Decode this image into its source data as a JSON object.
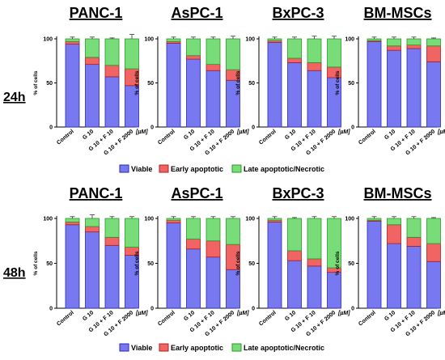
{
  "colors": {
    "viable": "#7878f0",
    "early": "#f06464",
    "late": "#78dc78",
    "viable_stroke": "#2a2ab0",
    "early_stroke": "#b02020",
    "late_stroke": "#2a9a2a"
  },
  "legend": [
    "Viable",
    "Early apoptotic",
    "Late apoptotic/Necrotic"
  ],
  "unit_label": "[µM]",
  "chart_data": [
    {
      "type": "bar",
      "stacked": true,
      "row": "24h",
      "title": "PANC-1",
      "ylabel": "% of cells",
      "ylim": [
        0,
        100
      ],
      "yticks": [
        0,
        50,
        100
      ],
      "categories": [
        "Control",
        "G 10",
        "G 10 + F 10",
        "G 10 + F 2000"
      ],
      "series": [
        {
          "name": "Viable",
          "values": [
            94,
            71,
            57,
            47
          ]
        },
        {
          "name": "Early apoptotic",
          "values": [
            3,
            8,
            13,
            19
          ]
        },
        {
          "name": "Late apoptotic/Necrotic",
          "values": [
            3,
            21,
            30,
            34
          ]
        }
      ],
      "errors": [
        [
          1,
          2,
          3,
          2
        ],
        [
          1,
          1,
          2,
          5
        ],
        [
          2,
          2,
          1,
          5
        ]
      ]
    },
    {
      "type": "bar",
      "stacked": true,
      "row": "24h",
      "title": "AsPC-1",
      "ylabel": "% of cells",
      "ylim": [
        0,
        100
      ],
      "yticks": [
        0,
        50,
        100
      ],
      "categories": [
        "Control",
        "G 10",
        "G 10 + F 10",
        "G 10 + F 2000"
      ],
      "series": [
        {
          "name": "Viable",
          "values": [
            95,
            77,
            64,
            53
          ]
        },
        {
          "name": "Early apoptotic",
          "values": [
            2,
            4,
            7,
            12
          ]
        },
        {
          "name": "Late apoptotic/Necrotic",
          "values": [
            3,
            19,
            29,
            35
          ]
        }
      ],
      "errors": [
        [
          1,
          1,
          2,
          2
        ],
        [
          1,
          1,
          1,
          2
        ],
        [
          2,
          2,
          2,
          3
        ]
      ]
    },
    {
      "type": "bar",
      "stacked": true,
      "row": "24h",
      "title": "BxPC-3",
      "ylabel": "% of cells",
      "ylim": [
        0,
        100
      ],
      "yticks": [
        0,
        50,
        100
      ],
      "categories": [
        "Control",
        "G 10",
        "G 10 + F 10",
        "G 10 + F 2000"
      ],
      "series": [
        {
          "name": "Viable",
          "values": [
            96,
            73,
            64,
            56
          ]
        },
        {
          "name": "Early apoptotic",
          "values": [
            2,
            5,
            9,
            12
          ]
        },
        {
          "name": "Late apoptotic/Necrotic",
          "values": [
            2,
            22,
            27,
            32
          ]
        }
      ],
      "errors": [
        [
          1,
          2,
          3,
          2
        ],
        [
          1,
          1,
          1,
          1
        ],
        [
          2,
          2,
          3,
          3
        ]
      ]
    },
    {
      "type": "bar",
      "stacked": true,
      "row": "24h",
      "title": "BM-MSCs",
      "ylabel": "% of cells",
      "ylim": [
        0,
        100
      ],
      "yticks": [
        0,
        50,
        100
      ],
      "categories": [
        "Control",
        "G 10",
        "G 10 + F 10",
        "G 10 + F 2000"
      ],
      "series": [
        {
          "name": "Viable",
          "values": [
            97,
            87,
            89,
            74
          ]
        },
        {
          "name": "Early apoptotic",
          "values": [
            1,
            5,
            4,
            18
          ]
        },
        {
          "name": "Late apoptotic/Necrotic",
          "values": [
            2,
            8,
            7,
            8
          ]
        }
      ],
      "errors": [
        [
          1,
          2,
          2,
          1
        ],
        [
          1,
          1,
          1,
          1
        ],
        [
          2,
          2,
          2,
          1
        ]
      ]
    },
    {
      "type": "bar",
      "stacked": true,
      "row": "48h",
      "title": "PANC-1",
      "ylabel": "% of cells",
      "ylim": [
        0,
        100
      ],
      "yticks": [
        0,
        50,
        100
      ],
      "categories": [
        "Control",
        "G 10",
        "G 10 + F 10",
        "G 10 + F 2000"
      ],
      "series": [
        {
          "name": "Viable",
          "values": [
            93,
            85,
            70,
            59
          ]
        },
        {
          "name": "Early apoptotic",
          "values": [
            3,
            6,
            9,
            9
          ]
        },
        {
          "name": "Late apoptotic/Necrotic",
          "values": [
            4,
            9,
            21,
            32
          ]
        }
      ],
      "errors": [
        [
          1,
          2,
          2,
          2
        ],
        [
          1,
          2,
          2,
          2
        ],
        [
          2,
          4,
          2,
          2
        ]
      ]
    },
    {
      "type": "bar",
      "stacked": true,
      "row": "48h",
      "title": "AsPC-1",
      "ylabel": "% of cells",
      "ylim": [
        0,
        100
      ],
      "yticks": [
        0,
        50,
        100
      ],
      "categories": [
        "Control",
        "G 10",
        "G 10 + F 10",
        "G 10 + F 2000"
      ],
      "series": [
        {
          "name": "Viable",
          "values": [
            95,
            66,
            57,
            43
          ]
        },
        {
          "name": "Early apoptotic",
          "values": [
            3,
            11,
            18,
            28
          ]
        },
        {
          "name": "Late apoptotic/Necrotic",
          "values": [
            2,
            23,
            25,
            29
          ]
        }
      ],
      "errors": [
        [
          1,
          1,
          2,
          5
        ],
        [
          1,
          2,
          2,
          2
        ],
        [
          2,
          2,
          2,
          2
        ]
      ]
    },
    {
      "type": "bar",
      "stacked": true,
      "row": "48h",
      "title": "BxPC-3",
      "ylabel": "% of cells",
      "ylim": [
        0,
        100
      ],
      "yticks": [
        0,
        50,
        100
      ],
      "categories": [
        "Control",
        "G 10",
        "G 10 + F 10",
        "G 10 + F 2000"
      ],
      "series": [
        {
          "name": "Viable",
          "values": [
            96,
            53,
            47,
            40
          ]
        },
        {
          "name": "Early apoptotic",
          "values": [
            2,
            11,
            8,
            5
          ]
        },
        {
          "name": "Late apoptotic/Necrotic",
          "values": [
            2,
            36,
            45,
            55
          ]
        }
      ],
      "errors": [
        [
          1,
          2,
          3,
          2
        ],
        [
          1,
          1,
          2,
          2
        ],
        [
          2,
          1,
          2,
          2
        ]
      ]
    },
    {
      "type": "bar",
      "stacked": true,
      "row": "48h",
      "title": "BM-MSCs",
      "ylabel": "% of cells",
      "ylim": [
        0,
        100
      ],
      "yticks": [
        0,
        50,
        100
      ],
      "categories": [
        "Control",
        "G 10",
        "G 10 + F 10",
        "G 10 + F 2000"
      ],
      "series": [
        {
          "name": "Viable",
          "values": [
            97,
            72,
            69,
            52
          ]
        },
        {
          "name": "Early apoptotic",
          "values": [
            1,
            21,
            10,
            20
          ]
        },
        {
          "name": "Late apoptotic/Necrotic",
          "values": [
            2,
            7,
            21,
            28
          ]
        }
      ],
      "errors": [
        [
          1,
          2,
          2,
          1
        ],
        [
          1,
          2,
          2,
          1
        ],
        [
          2,
          2,
          2,
          1
        ]
      ]
    }
  ]
}
